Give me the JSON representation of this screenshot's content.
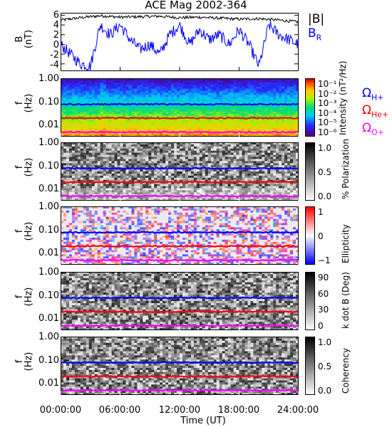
{
  "title": "ACE Mag 2002-364",
  "colors": {
    "total_field": "#000000",
    "br": "#0000ff",
    "h_plus": "#0000ff",
    "he_plus": "#ff0000",
    "o_plus": "#ff00ff"
  },
  "legend_b": {
    "total": "|B|",
    "br_main": "B",
    "br_sub": "R"
  },
  "legend_gyro": [
    {
      "main": "Ω",
      "sub": "H+",
      "color": "#0000ff"
    },
    {
      "main": "Ω",
      "sub": "He+",
      "color": "#ff0000"
    },
    {
      "main": "Ω",
      "sub": "O+",
      "color": "#ff00ff"
    }
  ],
  "axis_labels": {
    "b_top": "B",
    "b_bottom": "(nT)",
    "f_top": "f",
    "f_bottom": "(Hz)",
    "x": "Time (UT)"
  },
  "b_ticks": [
    "6",
    "4",
    "2",
    "0",
    "-2",
    "-4"
  ],
  "f_ticks": [
    "1.00",
    "0.10",
    "0.01"
  ],
  "x_ticks": [
    "00:00:00",
    "06:00:00",
    "12:00:00",
    "18:00:00",
    "24:00:00"
  ],
  "colorbars": [
    {
      "label": "Intensity (nT²/Hz)",
      "ticks": [
        "10⁻¹",
        "10⁻²",
        "10⁻³",
        "10⁻⁴",
        "10⁻⁵",
        "10⁻⁶"
      ],
      "scale": "rainbow"
    },
    {
      "label": "% Polarization",
      "ticks": [
        "1.0",
        "0.5",
        "0.0"
      ],
      "scale": "gray"
    },
    {
      "label": "Ellipticity",
      "ticks": [
        "1",
        "0",
        "−1"
      ],
      "scale": "bwr"
    },
    {
      "label": "k dot B (Deg)",
      "ticks": [
        "90",
        "60",
        "30",
        "0"
      ],
      "scale": "gray"
    },
    {
      "label": "Coherency",
      "ticks": [
        "1.0",
        "0.5",
        "0.0"
      ],
      "scale": "gray"
    }
  ],
  "chart_data": {
    "type": "line",
    "title": "ACE Mag 2002-364",
    "xlabel": "Time (UT)",
    "x_range_hours": [
      0,
      24
    ],
    "b_panel": {
      "ylim": [
        -5.5,
        6.5
      ],
      "series": [
        {
          "name": "|B|",
          "x": [
            0,
            2,
            4,
            6,
            8,
            10,
            12,
            14,
            16,
            18,
            20,
            22,
            24
          ],
          "values": [
            5.0,
            5.5,
            5.9,
            5.6,
            5.7,
            5.8,
            5.5,
            5.6,
            5.4,
            5.2,
            5.3,
            5.0,
            4.6
          ]
        },
        {
          "name": "B_R",
          "x": [
            0,
            1,
            2,
            3,
            4,
            5,
            6,
            7,
            8,
            9,
            10,
            11,
            12,
            13,
            14,
            15,
            16,
            17,
            18,
            19,
            20,
            21,
            22,
            23,
            24
          ],
          "values": [
            0,
            -2,
            -4,
            -4.5,
            4,
            2,
            4,
            1,
            -1,
            0,
            -2,
            2,
            4,
            0,
            3,
            1,
            2,
            0,
            3,
            0,
            -4.5,
            4,
            2,
            1,
            0
          ]
        }
      ]
    },
    "gyrofrequency_lines_hz": {
      "H+": 0.075,
      "He+": 0.019,
      "O+": 0.0047
    },
    "f_range_hz": [
      0.003,
      1.0
    ],
    "spectrogram_panels": [
      "Intensity",
      "% Polarization",
      "Ellipticity",
      "k dot B",
      "Coherency"
    ]
  }
}
